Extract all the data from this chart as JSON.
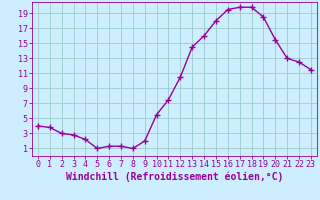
{
  "x": [
    0,
    1,
    2,
    3,
    4,
    5,
    6,
    7,
    8,
    9,
    10,
    11,
    12,
    13,
    14,
    15,
    16,
    17,
    18,
    19,
    20,
    21,
    22,
    23
  ],
  "y": [
    4.0,
    3.8,
    3.0,
    2.8,
    2.2,
    1.0,
    1.3,
    1.3,
    1.0,
    2.0,
    5.5,
    7.5,
    10.5,
    14.5,
    16.0,
    18.0,
    19.5,
    19.8,
    19.8,
    18.5,
    15.5,
    13.0,
    12.5,
    11.5
  ],
  "line_color": "#990099",
  "marker": "+",
  "marker_size": 4,
  "marker_lw": 1.0,
  "line_width": 1.0,
  "bg_color": "#cceeff",
  "grid_color": "#99cccc",
  "xlabel": "Windchill (Refroidissement éolien,°C)",
  "xlabel_color": "#990099",
  "xlabel_fontsize": 7,
  "tick_color": "#990099",
  "tick_fontsize": 6,
  "spine_color": "#990099",
  "xlim": [
    -0.5,
    23.5
  ],
  "ylim": [
    0.0,
    20.5
  ],
  "yticks": [
    1,
    3,
    5,
    7,
    9,
    11,
    13,
    15,
    17,
    19
  ],
  "xticks": [
    0,
    1,
    2,
    3,
    4,
    5,
    6,
    7,
    8,
    9,
    10,
    11,
    12,
    13,
    14,
    15,
    16,
    17,
    18,
    19,
    20,
    21,
    22,
    23
  ]
}
